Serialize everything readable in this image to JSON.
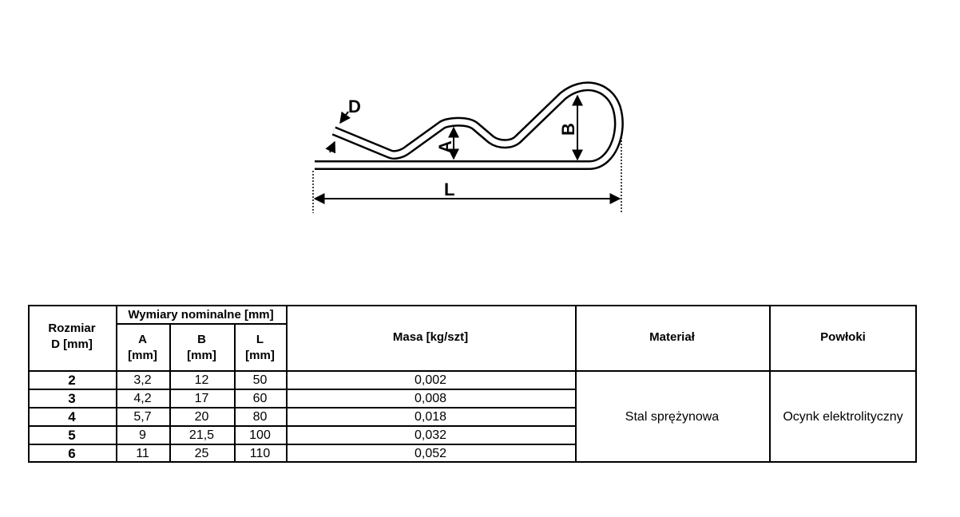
{
  "drawing": {
    "labels": {
      "D": "D",
      "A": "A",
      "B": "B",
      "L": "L"
    }
  },
  "table": {
    "headers": {
      "size_line1": "Rozmiar",
      "size_line2": "D [mm]",
      "dimensions_group": "Wymiary nominalne [mm]",
      "A": "A",
      "B": "B",
      "L": "L",
      "unit": "[mm]",
      "mass": "Masa [kg/szt]",
      "material": "Materiał",
      "coating": "Powłoki"
    },
    "rows": [
      {
        "size": "2",
        "A": "3,2",
        "B": "12",
        "L": "50",
        "mass": "0,002"
      },
      {
        "size": "3",
        "A": "4,2",
        "B": "17",
        "L": "60",
        "mass": "0,008"
      },
      {
        "size": "4",
        "A": "5,7",
        "B": "20",
        "L": "80",
        "mass": "0,018"
      },
      {
        "size": "5",
        "A": "9",
        "B": "21,5",
        "L": "100",
        "mass": "0,032"
      },
      {
        "size": "6",
        "A": "11",
        "B": "25",
        "L": "110",
        "mass": "0,052"
      }
    ],
    "material": "Stal sprężynowa",
    "coating": "Ocynk elektrolityczny"
  }
}
